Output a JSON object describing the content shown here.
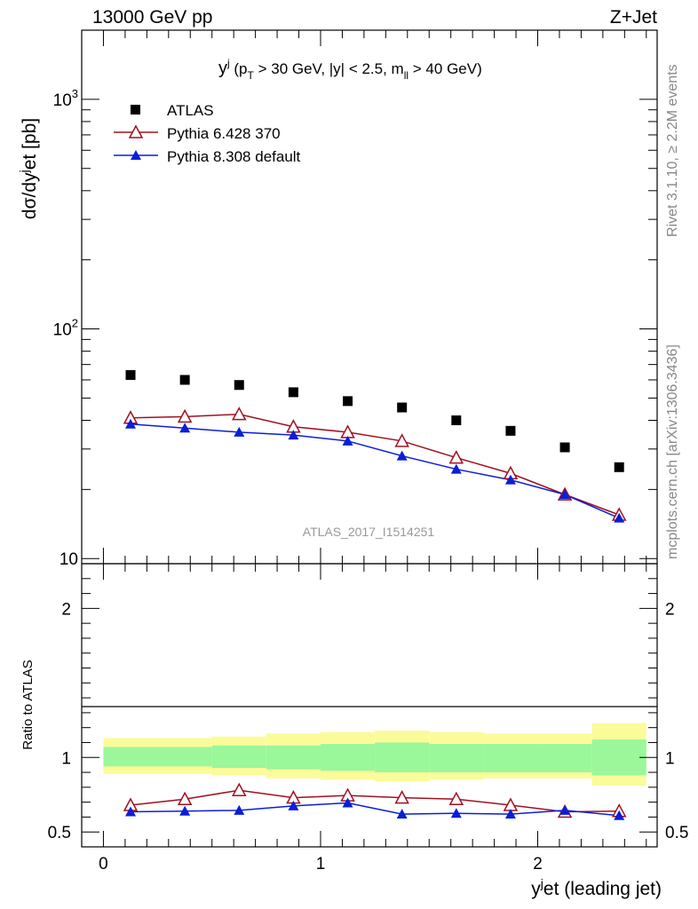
{
  "header": {
    "left": "13000 GeV pp",
    "right": "Z+Jet"
  },
  "side_labels": {
    "rivet": "Rivet 3.1.10, ≥ 2.2M events",
    "mcplots": "mcplots.cern.ch [arXiv:1306.3436]"
  },
  "watermark": "ATLAS_2017_I1514251",
  "colors": {
    "atlas": "#000000",
    "pythia6": "#a01020",
    "pythia8": "#0a1ed8",
    "band_inner": "#9af79a",
    "band_outer": "#fbfb9a"
  },
  "chart_data": [
    {
      "type": "scatter",
      "title": "y^j (p_T > 30 GeV, |y| < 2.5, m_ll > 40 GeV)",
      "ylabel": "dσ/dy^jet [pb]",
      "yscale": "log",
      "ylim": [
        9.5,
        2000
      ],
      "xlim": [
        -0.1,
        2.55
      ],
      "ytick_labels": [
        "10",
        "10^2",
        "10^3"
      ],
      "legend": [
        "ATLAS",
        "Pythia 6.428 370",
        "Pythia 8.308 default"
      ],
      "legend_position": "top-left",
      "x": [
        0.125,
        0.375,
        0.625,
        0.875,
        1.125,
        1.375,
        1.625,
        1.875,
        2.125,
        2.375
      ],
      "series": [
        {
          "name": "ATLAS",
          "marker": "square",
          "values": [
            63,
            60,
            57,
            53,
            48.5,
            45.5,
            40,
            36,
            30.5,
            25
          ]
        },
        {
          "name": "Pythia 6.428 370",
          "marker": "open-triangle",
          "values": [
            41,
            41.5,
            42.5,
            37.5,
            35.5,
            32.5,
            27.5,
            23.5,
            19,
            15.5
          ]
        },
        {
          "name": "Pythia 8.308 default",
          "marker": "filled-triangle",
          "values": [
            38.5,
            37,
            35.5,
            34.5,
            32.5,
            28,
            24.5,
            22,
            19,
            15
          ]
        }
      ]
    },
    {
      "type": "line",
      "ylabel": "Ratio to ATLAS",
      "xlabel": "y^jet (leading jet)",
      "ylim": [
        0.4,
        2.3
      ],
      "xlim": [
        -0.1,
        2.55
      ],
      "xtick_labels": [
        "0",
        "1",
        "2"
      ],
      "ytick_labels": [
        "0.5",
        "1",
        "2"
      ],
      "x": [
        0.125,
        0.375,
        0.625,
        0.875,
        1.125,
        1.375,
        1.625,
        1.875,
        2.125,
        2.375
      ],
      "bins": [
        0,
        0.25,
        0.5,
        0.75,
        1.0,
        1.25,
        1.5,
        1.75,
        2.0,
        2.25,
        2.5
      ],
      "band_inner": {
        "low": [
          0.94,
          0.94,
          0.93,
          0.92,
          0.91,
          0.9,
          0.9,
          0.9,
          0.9,
          0.88
        ],
        "high": [
          1.07,
          1.07,
          1.08,
          1.08,
          1.09,
          1.1,
          1.09,
          1.09,
          1.09,
          1.12
        ]
      },
      "band_outer": {
        "low": [
          0.89,
          0.89,
          0.88,
          0.86,
          0.85,
          0.84,
          0.85,
          0.86,
          0.86,
          0.81
        ],
        "high": [
          1.13,
          1.13,
          1.14,
          1.16,
          1.17,
          1.18,
          1.17,
          1.16,
          1.16,
          1.23
        ]
      },
      "series": [
        {
          "name": "Pythia 6.428 370",
          "values": [
            0.68,
            0.72,
            0.78,
            0.73,
            0.745,
            0.73,
            0.72,
            0.68,
            0.635,
            0.64
          ],
          "errors": [
            0.005,
            0.005,
            0.005,
            0.005,
            0.005,
            0.005,
            0.01,
            0.015,
            0.02,
            0.02
          ]
        },
        {
          "name": "Pythia 8.308 default",
          "values": [
            0.635,
            0.64,
            0.645,
            0.675,
            0.695,
            0.62,
            0.625,
            0.62,
            0.645,
            0.61
          ],
          "errors": [
            0.005,
            0.005,
            0.005,
            0.005,
            0.008,
            0.012,
            0.012,
            0.012,
            0.02,
            0.02
          ]
        }
      ]
    }
  ]
}
